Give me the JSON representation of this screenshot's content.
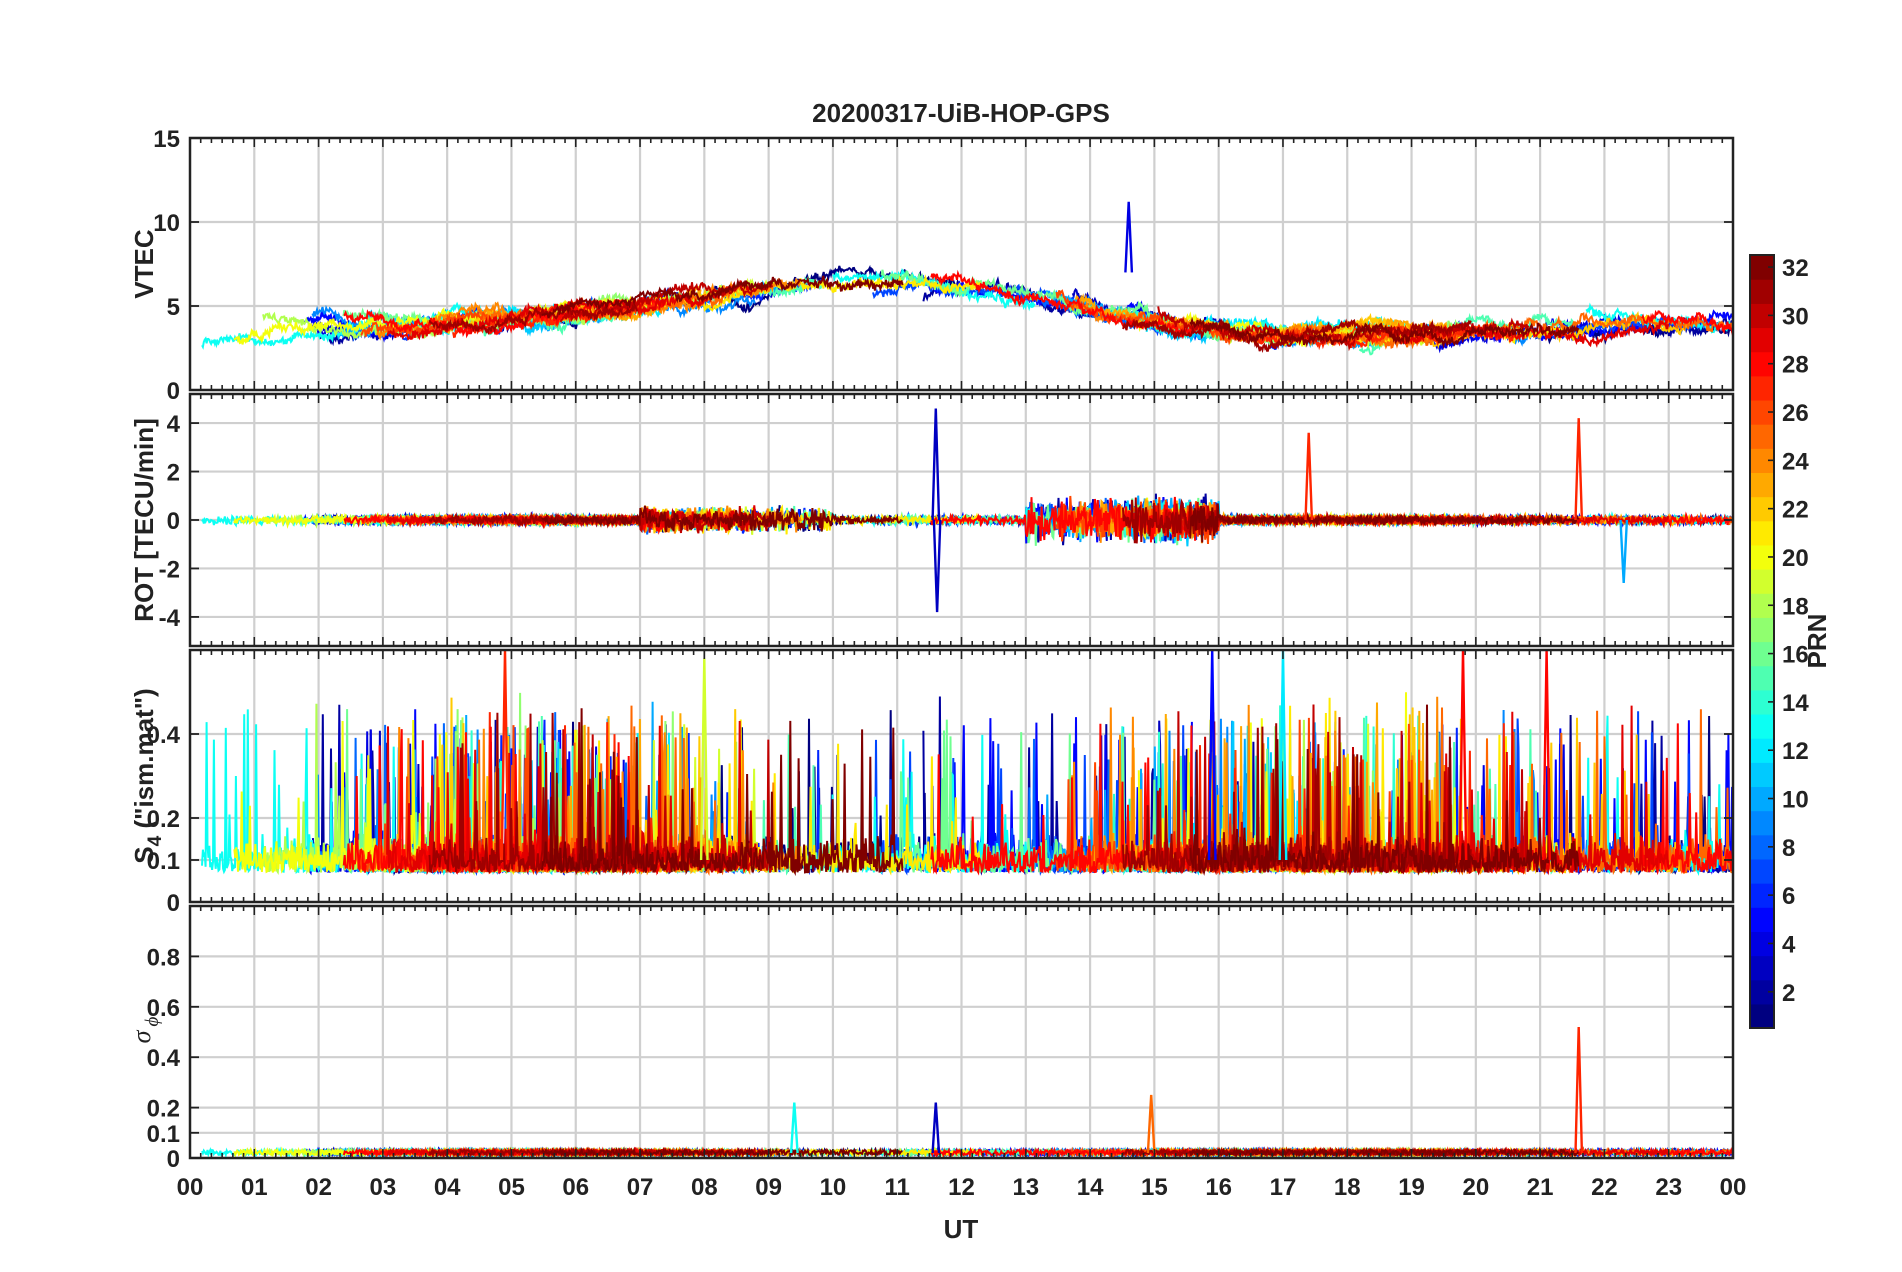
{
  "chart_data": {
    "type": "line",
    "title": "20200317-UiB-HOP-GPS",
    "xlabel": "UT",
    "x_tick_labels": [
      "00",
      "01",
      "02",
      "03",
      "04",
      "05",
      "06",
      "07",
      "08",
      "09",
      "10",
      "11",
      "12",
      "13",
      "14",
      "15",
      "16",
      "17",
      "18",
      "19",
      "20",
      "21",
      "22",
      "23",
      "00"
    ],
    "colorbar": {
      "label": "PRN",
      "range": [
        1,
        32
      ],
      "ticks": [
        2,
        4,
        6,
        8,
        10,
        12,
        14,
        16,
        18,
        20,
        22,
        24,
        26,
        28,
        30,
        32
      ],
      "colormap": "jet"
    },
    "panels": [
      {
        "id": "vtec",
        "ylabel": "VTEC",
        "ylim": [
          0,
          15
        ],
        "yticks": [
          0,
          5,
          10,
          15
        ],
        "ytick_labels": [
          "0",
          "5",
          "10",
          "15"
        ],
        "description_values": {
          "baseline_range": [
            2,
            8
          ],
          "peak_value": 11.2,
          "peak_hour": 14.6
        }
      },
      {
        "id": "rot",
        "ylabel": "ROT [TECU/min]",
        "ylim": [
          -5.2,
          5.2
        ],
        "yticks": [
          -4,
          -2,
          0,
          2,
          4
        ],
        "ytick_labels": [
          "-4",
          "-2",
          "0",
          "2",
          "4"
        ],
        "description_values": {
          "max": 4.6,
          "min": -3.8,
          "spike_hours": [
            11.6,
            17.4,
            21.6
          ]
        }
      },
      {
        "id": "s4",
        "ylabel_prefix": "S",
        "ylabel_sub": "4",
        "ylabel_suffix": " (\"ism.mat\")",
        "ylim": [
          0,
          0.6
        ],
        "yticks": [
          0,
          0.1,
          0.2,
          0.4
        ],
        "ytick_labels": [
          "0",
          "0.1",
          "0.2",
          "0.4"
        ],
        "description_values": {
          "background": 0.07,
          "max": 0.6
        }
      },
      {
        "id": "sigma_phi",
        "ylabel_symbol": "σ",
        "ylabel_sub": "ϕ",
        "ylim": [
          0,
          1
        ],
        "yticks": [
          0,
          0.1,
          0.2,
          0.4,
          0.6,
          0.8
        ],
        "ytick_labels": [
          "0",
          "0.1",
          "0.2",
          "0.4",
          "0.6",
          "0.8"
        ],
        "description_values": {
          "background": 0.02,
          "max": 0.52,
          "max_hour": 21.6
        }
      }
    ]
  }
}
